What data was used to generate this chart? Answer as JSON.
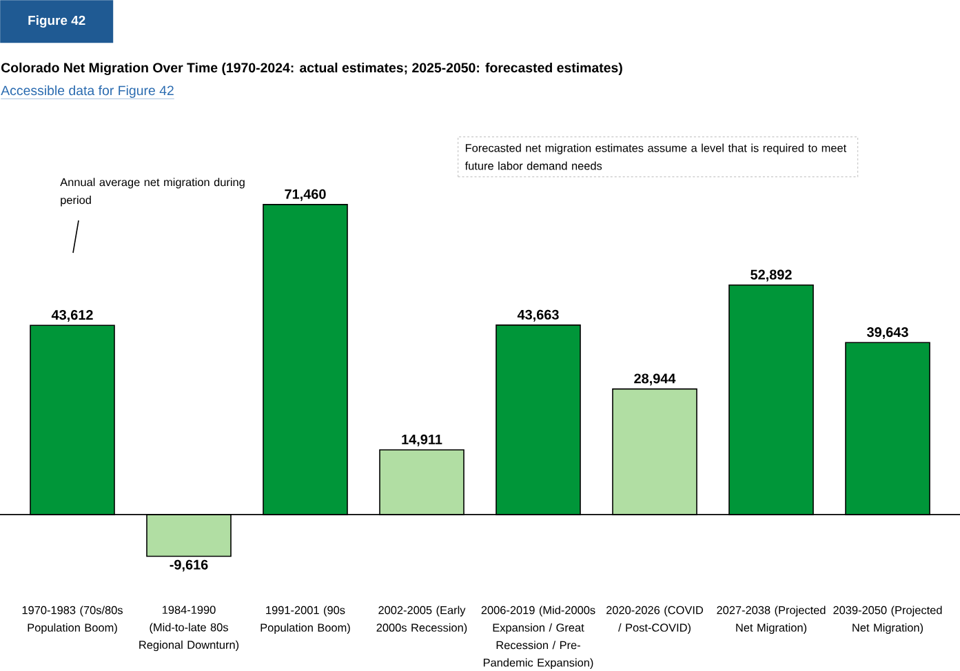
{
  "chart_data": {
    "type": "bar",
    "title": "Colorado Net Migration Over Time (1970-2024: actual estimates; 2025-2050: forecasted estimates)",
    "categories": [
      "1970-1983 (70s/80s Population Boom)",
      "1984-1990 (Mid-to-late 80s Regional Downturn)",
      "1991-2001 (90s Population Boom)",
      "2002-2005 (Early 2000s Recession)",
      "2006-2019 (Mid-2000s Expansion / Great Recession / Pre-Pandemic Expansion)",
      "2020-2026 (COVID / Post-COVID)",
      "2027-2038 (Projected Net Migration)",
      "2039-2050 (Projected Net Migration)"
    ],
    "values": [
      43612,
      -9616,
      71460,
      14911,
      43663,
      28944,
      52892,
      39643
    ],
    "value_labels": [
      "43,612",
      "-9,616",
      "71,460",
      "14,911",
      "43,663",
      "28,944",
      "52,892",
      "39,643"
    ],
    "colors": [
      "#009639",
      "#b1dea3",
      "#009639",
      "#b1dea3",
      "#009639",
      "#b1dea3",
      "#009639",
      "#009639"
    ],
    "annotations": [
      "Figure 42",
      "Accessible data for Figure 42",
      "Annual average net migration during period",
      "Forecasted net migration estimates assume a level that is required to meet future labor demand needs"
    ]
  }
}
